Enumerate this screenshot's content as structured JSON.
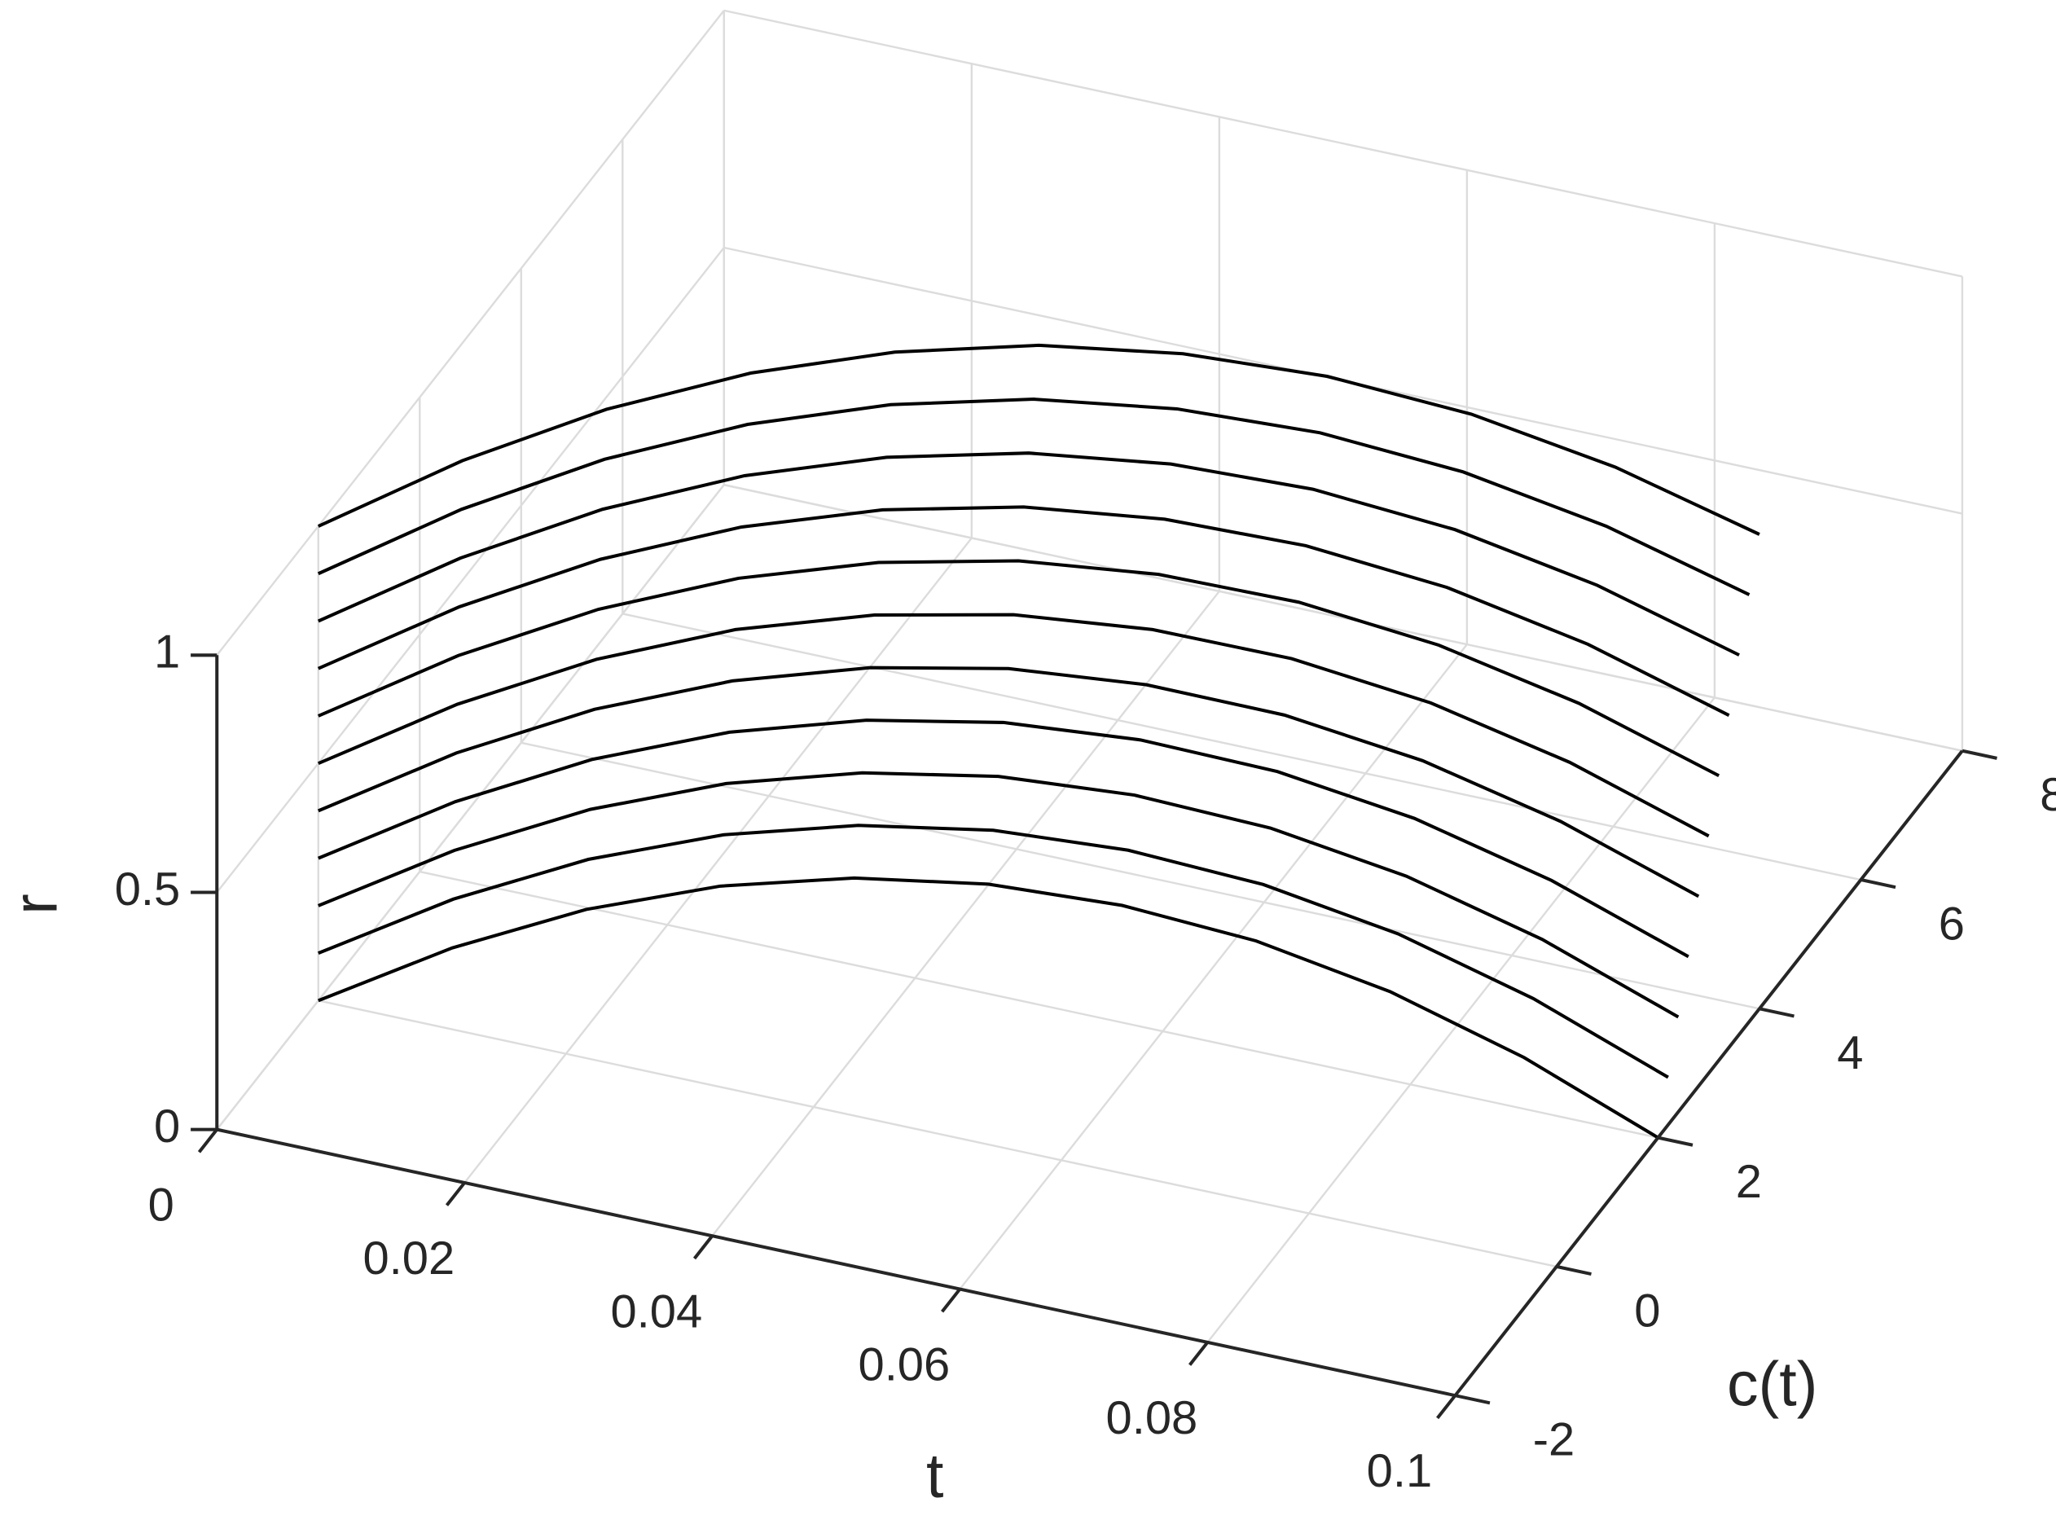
{
  "chart_data": {
    "type": "line3d",
    "xlabel": "t",
    "ylabel": "c(t)",
    "zlabel": "r",
    "xlim": [
      0,
      0.1
    ],
    "ylim": [
      -2,
      8
    ],
    "zlim": [
      0,
      1
    ],
    "xticks": [
      0,
      0.02,
      0.04,
      0.06,
      0.08,
      0.1
    ],
    "yticks": [
      -2,
      0,
      2,
      4,
      6,
      8
    ],
    "zticks": [
      0,
      0.5,
      1
    ],
    "grid": true,
    "x": [
      0,
      0.01,
      0.02,
      0.03,
      0.04,
      0.05,
      0.06,
      0.07,
      0.08,
      0.09,
      0.1
    ],
    "series": [
      {
        "color": "#000000",
        "c": [
          0,
          0.2,
          0.4,
          0.6,
          0.8,
          1,
          1.2,
          1.4,
          1.6,
          1.8,
          2
        ],
        "values": [
          0,
          0.14,
          0.25,
          0.328,
          0.374,
          0.39,
          0.374,
          0.328,
          0.25,
          0.14,
          0
        ]
      },
      {
        "color": "#000000",
        "c": [
          0,
          0.22,
          0.44,
          0.66,
          0.88,
          1.1,
          1.32,
          1.54,
          1.76,
          1.98,
          2.2
        ],
        "values": [
          0.1,
          0.24,
          0.35,
          0.428,
          0.474,
          0.49,
          0.474,
          0.428,
          0.35,
          0.24,
          0.1
        ]
      },
      {
        "color": "#000000",
        "c": [
          0,
          0.24,
          0.48,
          0.72,
          0.96,
          1.2,
          1.44,
          1.68,
          1.92,
          2.16,
          2.4
        ],
        "values": [
          0.2,
          0.34,
          0.45,
          0.528,
          0.574,
          0.59,
          0.574,
          0.528,
          0.45,
          0.34,
          0.2
        ]
      },
      {
        "color": "#000000",
        "c": [
          0,
          0.26,
          0.52,
          0.78,
          1.04,
          1.3,
          1.56,
          1.82,
          2.08,
          2.34,
          2.6
        ],
        "values": [
          0.3,
          0.44,
          0.55,
          0.628,
          0.674,
          0.69,
          0.674,
          0.628,
          0.55,
          0.44,
          0.3
        ]
      },
      {
        "color": "#000000",
        "c": [
          0,
          0.28,
          0.56,
          0.84,
          1.12,
          1.4,
          1.68,
          1.96,
          2.24,
          2.52,
          2.8
        ],
        "values": [
          0.4,
          0.54,
          0.65,
          0.728,
          0.774,
          0.79,
          0.774,
          0.728,
          0.65,
          0.54,
          0.4
        ]
      },
      {
        "color": "#000000",
        "c": [
          0,
          0.3,
          0.6,
          0.9,
          1.2,
          1.5,
          1.8,
          2.1,
          2.4,
          2.7,
          3
        ],
        "values": [
          0.5,
          0.64,
          0.75,
          0.828,
          0.874,
          0.89,
          0.874,
          0.828,
          0.75,
          0.64,
          0.5
        ]
      },
      {
        "color": "#000000",
        "c": [
          0,
          0.32,
          0.64,
          0.96,
          1.28,
          1.6,
          1.92,
          2.24,
          2.56,
          2.88,
          3.2
        ],
        "values": [
          0.6,
          0.74,
          0.85,
          0.928,
          0.974,
          0.99,
          0.974,
          0.928,
          0.85,
          0.74,
          0.6
        ]
      },
      {
        "color": "#000000",
        "c": [
          0,
          0.34,
          0.68,
          1.02,
          1.36,
          1.7,
          2.04,
          2.38,
          2.72,
          3.06,
          3.4
        ],
        "values": [
          0.7,
          0.84,
          0.95,
          1.028,
          1.074,
          1.09,
          1.074,
          1.028,
          0.95,
          0.84,
          0.7
        ]
      },
      {
        "color": "#000000",
        "c": [
          0,
          0.36,
          0.72,
          1.08,
          1.44,
          1.8,
          2.16,
          2.52,
          2.88,
          3.24,
          3.6
        ],
        "values": [
          0.8,
          0.94,
          1.05,
          1.128,
          1.174,
          1.19,
          1.174,
          1.128,
          1.05,
          0.94,
          0.8
        ]
      },
      {
        "color": "#000000",
        "c": [
          0,
          0.38,
          0.76,
          1.14,
          1.52,
          1.9,
          2.28,
          2.66,
          3.04,
          3.42,
          3.8
        ],
        "values": [
          0.9,
          1.04,
          1.15,
          1.228,
          1.274,
          1.29,
          1.274,
          1.228,
          1.15,
          1.04,
          0.9
        ]
      },
      {
        "color": "#000000",
        "c": [
          0,
          0.4,
          0.8,
          1.2,
          1.6,
          2,
          2.4,
          2.8,
          3.2,
          3.6,
          4
        ],
        "values": [
          1,
          1.14,
          1.25,
          1.328,
          1.374,
          1.39,
          1.374,
          1.328,
          1.25,
          1.14,
          1
        ]
      }
    ]
  }
}
